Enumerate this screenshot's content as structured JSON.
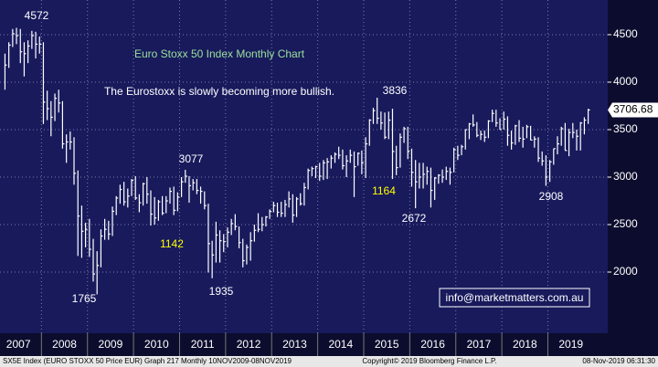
{
  "chart_data": {
    "type": "ohlc",
    "title": "Euro Stoxx 50 Index Monthly Chart",
    "subtitle": "The Eurostoxx is slowly becoming more bullish.",
    "annotations": [
      4572,
      1765,
      3077,
      1142,
      1935,
      3836,
      1164,
      2672,
      2908
    ],
    "color": "#ffffff",
    "x": [
      2007.208,
      2007.292,
      2007.375,
      2007.458,
      2007.542,
      2007.625,
      2007.708,
      2007.792,
      2007.875,
      2007.958,
      2008.042,
      2008.125,
      2008.208,
      2008.292,
      2008.375,
      2008.458,
      2008.542,
      2008.625,
      2008.708,
      2008.792,
      2008.875,
      2008.958,
      2009.042,
      2009.125,
      2009.208,
      2009.292,
      2009.375,
      2009.458,
      2009.542,
      2009.625,
      2009.708,
      2009.792,
      2009.875,
      2009.958,
      2010.042,
      2010.125,
      2010.208,
      2010.292,
      2010.375,
      2010.458,
      2010.542,
      2010.625,
      2010.708,
      2010.792,
      2010.875,
      2010.958,
      2011.042,
      2011.125,
      2011.208,
      2011.292,
      2011.375,
      2011.458,
      2011.542,
      2011.625,
      2011.708,
      2011.792,
      2011.875,
      2011.958,
      2012.042,
      2012.125,
      2012.208,
      2012.292,
      2012.375,
      2012.458,
      2012.542,
      2012.625,
      2012.708,
      2012.792,
      2012.875,
      2012.958,
      2013.042,
      2013.125,
      2013.208,
      2013.292,
      2013.375,
      2013.458,
      2013.542,
      2013.625,
      2013.708,
      2013.792,
      2013.875,
      2013.958,
      2014.042,
      2014.125,
      2014.208,
      2014.292,
      2014.375,
      2014.458,
      2014.542,
      2014.625,
      2014.708,
      2014.792,
      2014.875,
      2014.958,
      2015.042,
      2015.125,
      2015.208,
      2015.292,
      2015.375,
      2015.458,
      2015.542,
      2015.625,
      2015.708,
      2015.792,
      2015.875,
      2015.958,
      2016.042,
      2016.125,
      2016.208,
      2016.292,
      2016.375,
      2016.458,
      2016.542,
      2016.625,
      2016.708,
      2016.792,
      2016.875,
      2016.958,
      2017.042,
      2017.125,
      2017.208,
      2017.292,
      2017.375,
      2017.458,
      2017.542,
      2017.625,
      2017.708,
      2017.792,
      2017.875,
      2017.958,
      2018.042,
      2018.125,
      2018.208,
      2018.292,
      2018.375,
      2018.458,
      2018.542,
      2018.625,
      2018.708,
      2018.792,
      2018.875,
      2018.958,
      2019.042,
      2019.125,
      2019.208,
      2019.292,
      2019.375,
      2019.458,
      2019.542,
      2019.625,
      2019.708,
      2019.792,
      2019.875
    ],
    "high": [
      4300,
      4420,
      4560,
      4572,
      4560,
      4420,
      4440,
      4540,
      4530,
      4480,
      4420,
      3910,
      3800,
      3880,
      3920,
      3800,
      3450,
      3480,
      3420,
      3070,
      2700,
      2520,
      2560,
      2350,
      2220,
      2450,
      2560,
      2540,
      2690,
      2800,
      2920,
      2950,
      2880,
      2980,
      3010,
      2820,
      2940,
      3000,
      2860,
      2790,
      2760,
      2800,
      2800,
      2890,
      2900,
      2840,
      3000,
      3077,
      3010,
      2980,
      2980,
      2900,
      2850,
      2720,
      2330,
      2530,
      2440,
      2400,
      2470,
      2560,
      2610,
      2480,
      2350,
      2290,
      2420,
      2500,
      2620,
      2580,
      2590,
      2660,
      2740,
      2730,
      2740,
      2760,
      2850,
      2820,
      2790,
      2830,
      2940,
      3090,
      3110,
      3120,
      3150,
      3180,
      3200,
      3230,
      3260,
      3320,
      3290,
      3230,
      3290,
      3270,
      3260,
      3280,
      3420,
      3610,
      3730,
      3836,
      3690,
      3680,
      3690,
      3720,
      3330,
      3460,
      3530,
      3530,
      3300,
      3180,
      3150,
      3150,
      3110,
      3100,
      3000,
      3030,
      3080,
      3110,
      3100,
      3310,
      3330,
      3340,
      3500,
      3570,
      3660,
      3580,
      3490,
      3490,
      3600,
      3710,
      3710,
      3620,
      3690,
      3640,
      3490,
      3550,
      3600,
      3530,
      3550,
      3540,
      3430,
      3420,
      3270,
      3230,
      3180,
      3300,
      3430,
      3530,
      3570,
      3510,
      3570,
      3500,
      3580,
      3630,
      3720
    ],
    "low": [
      3920,
      4150,
      4370,
      4400,
      4200,
      4060,
      4200,
      4350,
      4250,
      4300,
      3560,
      3600,
      3430,
      3590,
      3680,
      3300,
      3150,
      3290,
      2920,
      2170,
      2150,
      2260,
      2160,
      1900,
      1765,
      2050,
      2340,
      2340,
      2380,
      2600,
      2720,
      2700,
      2680,
      2800,
      2760,
      2630,
      2700,
      2720,
      2490,
      2500,
      2540,
      2600,
      2620,
      2720,
      2600,
      2640,
      2790,
      2940,
      2730,
      2860,
      2820,
      2720,
      2660,
      1995,
      1935,
      2100,
      2100,
      2210,
      2260,
      2390,
      2440,
      2250,
      2050,
      2080,
      2120,
      2320,
      2420,
      2430,
      2480,
      2560,
      2630,
      2580,
      2580,
      2580,
      2680,
      2520,
      2580,
      2700,
      2700,
      2870,
      3010,
      2990,
      2960,
      2970,
      2980,
      3090,
      3150,
      3190,
      3080,
      3000,
      3150,
      2790,
      3120,
      3030,
      2990,
      3330,
      3560,
      3560,
      3500,
      3400,
      3400,
      2980,
      3020,
      3100,
      3360,
      3190,
      2900,
      2672,
      2880,
      2880,
      2920,
      2680,
      2760,
      2930,
      2940,
      2970,
      2920,
      3050,
      3180,
      3230,
      3290,
      3400,
      3530,
      3420,
      3390,
      3370,
      3410,
      3580,
      3530,
      3500,
      3500,
      3330,
      3290,
      3340,
      3370,
      3310,
      3410,
      3390,
      3310,
      3160,
      3120,
      2908,
      2950,
      3130,
      3240,
      3330,
      3280,
      3220,
      3410,
      3280,
      3280,
      3450,
      3560
    ],
    "close": [
      4180,
      4390,
      4510,
      4490,
      4320,
      4300,
      4380,
      4490,
      4400,
      4400,
      3790,
      3720,
      3630,
      3830,
      3780,
      3350,
      3370,
      3370,
      3040,
      2590,
      2430,
      2450,
      2240,
      1980,
      2070,
      2380,
      2450,
      2400,
      2640,
      2780,
      2870,
      2740,
      2800,
      2965,
      2780,
      2730,
      2930,
      2820,
      2610,
      2570,
      2740,
      2620,
      2750,
      2850,
      2650,
      2790,
      2950,
      3010,
      2910,
      2940,
      2860,
      2850,
      2700,
      2300,
      2180,
      2390,
      2330,
      2320,
      2420,
      2510,
      2480,
      2310,
      2120,
      2260,
      2330,
      2440,
      2450,
      2500,
      2580,
      2640,
      2700,
      2630,
      2620,
      2710,
      2770,
      2600,
      2770,
      2720,
      2890,
      3070,
      3090,
      3110,
      3010,
      3150,
      3160,
      3200,
      3240,
      3230,
      3120,
      3170,
      3230,
      3110,
      3250,
      3150,
      3350,
      3600,
      3700,
      3620,
      3570,
      3420,
      3600,
      3270,
      3100,
      3420,
      3510,
      3270,
      3050,
      2950,
      3000,
      3030,
      3060,
      2860,
      2990,
      3020,
      3000,
      3060,
      3050,
      3290,
      3230,
      3320,
      3500,
      3560,
      3550,
      3440,
      3450,
      3420,
      3590,
      3670,
      3570,
      3500,
      3610,
      3440,
      3360,
      3540,
      3410,
      3400,
      3530,
      3390,
      3400,
      3200,
      3170,
      3000,
      3160,
      3300,
      3350,
      3510,
      3280,
      3470,
      3470,
      3430,
      3570,
      3600,
      3706.68
    ],
    "xlim": [
      2007.1,
      2020.3
    ],
    "xticks": [
      2007,
      2008,
      2009,
      2010,
      2011,
      2012,
      2013,
      2014,
      2015,
      2016,
      2017,
      2018,
      2019
    ],
    "ylim": [
      1356,
      4865
    ],
    "yticks": [
      2000,
      2500,
      3000,
      3500,
      4000,
      4500
    ],
    "grid": true
  },
  "watermark": "info@marketmatters.com.au",
  "footer": {
    "left": "SX5E Index (EURO STOXX 50 Price EUR) Graph 217  Monthly 10NOV2009-08NOV2019",
    "center": "Copyright© 2019 Bloomberg Finance L.P.",
    "right": "08-Nov-2019 06:31:30"
  }
}
